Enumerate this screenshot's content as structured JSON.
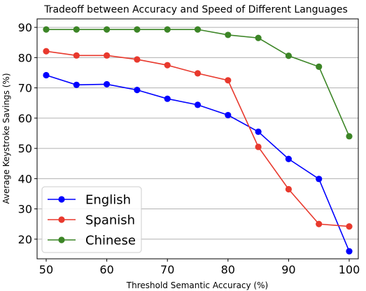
{
  "chart_data": {
    "type": "line",
    "title": "Tradeoff between Accuracy and Speed of Different Languages",
    "xlabel": "Threshold Semantic Accuracy (%)",
    "ylabel": "Average Keystroke Savings (%)",
    "x": [
      50,
      55,
      60,
      65,
      70,
      75,
      80,
      85,
      90,
      95,
      100
    ],
    "xticks": [
      50,
      60,
      70,
      80,
      90,
      100
    ],
    "yticks": [
      20,
      30,
      40,
      50,
      60,
      70,
      80,
      90
    ],
    "xlim": [
      48.5,
      101.5
    ],
    "ylim": [
      13.5,
      92.8
    ],
    "grid": "horizontal",
    "legend_position": "lower-left",
    "series": [
      {
        "name": "English",
        "color": "#0000ff",
        "values": [
          74.2,
          71.0,
          71.2,
          69.3,
          66.4,
          64.4,
          61.0,
          55.5,
          46.5,
          39.9,
          16.0
        ]
      },
      {
        "name": "Spanish",
        "color": "#e8392d",
        "values": [
          82.1,
          80.7,
          80.7,
          79.4,
          77.5,
          74.8,
          72.5,
          50.5,
          36.5,
          25.0,
          24.2
        ]
      },
      {
        "name": "Chinese",
        "color": "#3c8526",
        "values": [
          89.3,
          89.3,
          89.3,
          89.3,
          89.3,
          89.3,
          87.5,
          86.5,
          80.6,
          77.0,
          54.0
        ]
      }
    ]
  }
}
